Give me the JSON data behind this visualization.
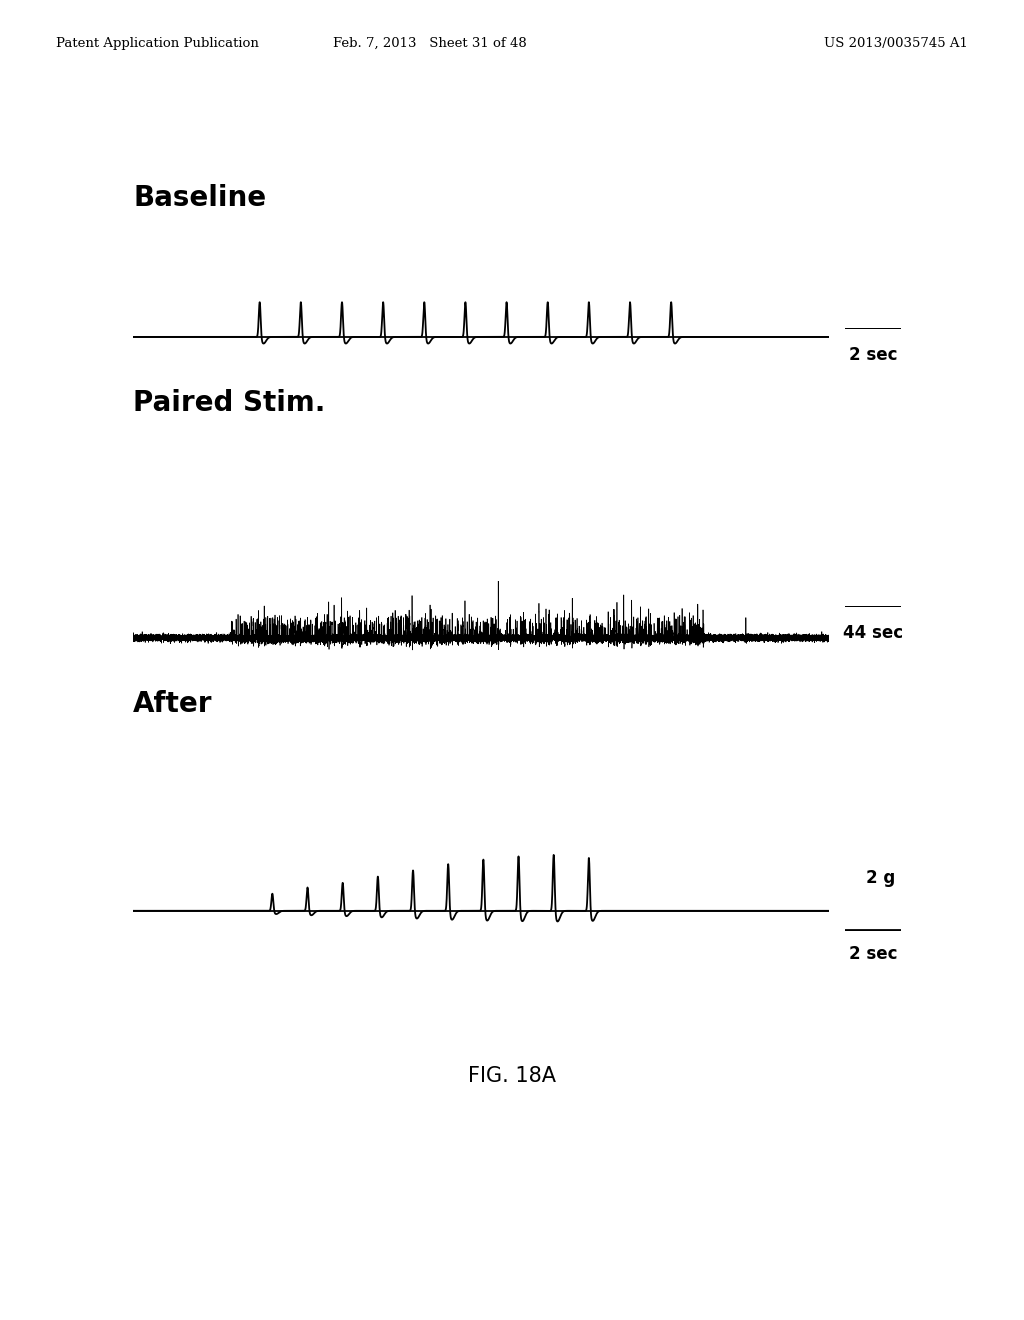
{
  "background_color": "#ffffff",
  "header_left": "Patent Application Publication",
  "header_mid": "Feb. 7, 2013   Sheet 31 of 48",
  "header_right": "US 2013/0035745 A1",
  "header_fontsize": 9.5,
  "fig_label": "FIG. 18A",
  "fig_label_fontsize": 15,
  "label_baseline": "Baseline",
  "label_paired": "Paired Stim.",
  "label_after": "After",
  "label_fontsize": 20,
  "scalebar1_text": "2 sec",
  "scalebar2_text": "44 sec",
  "scalebar3_text": "2 sec",
  "scalebar_fontsize": 12,
  "scalebar2g_text": "2 g",
  "trace_color": "#000000",
  "baseline_lw": 1.3,
  "spike_lw": 1.3
}
